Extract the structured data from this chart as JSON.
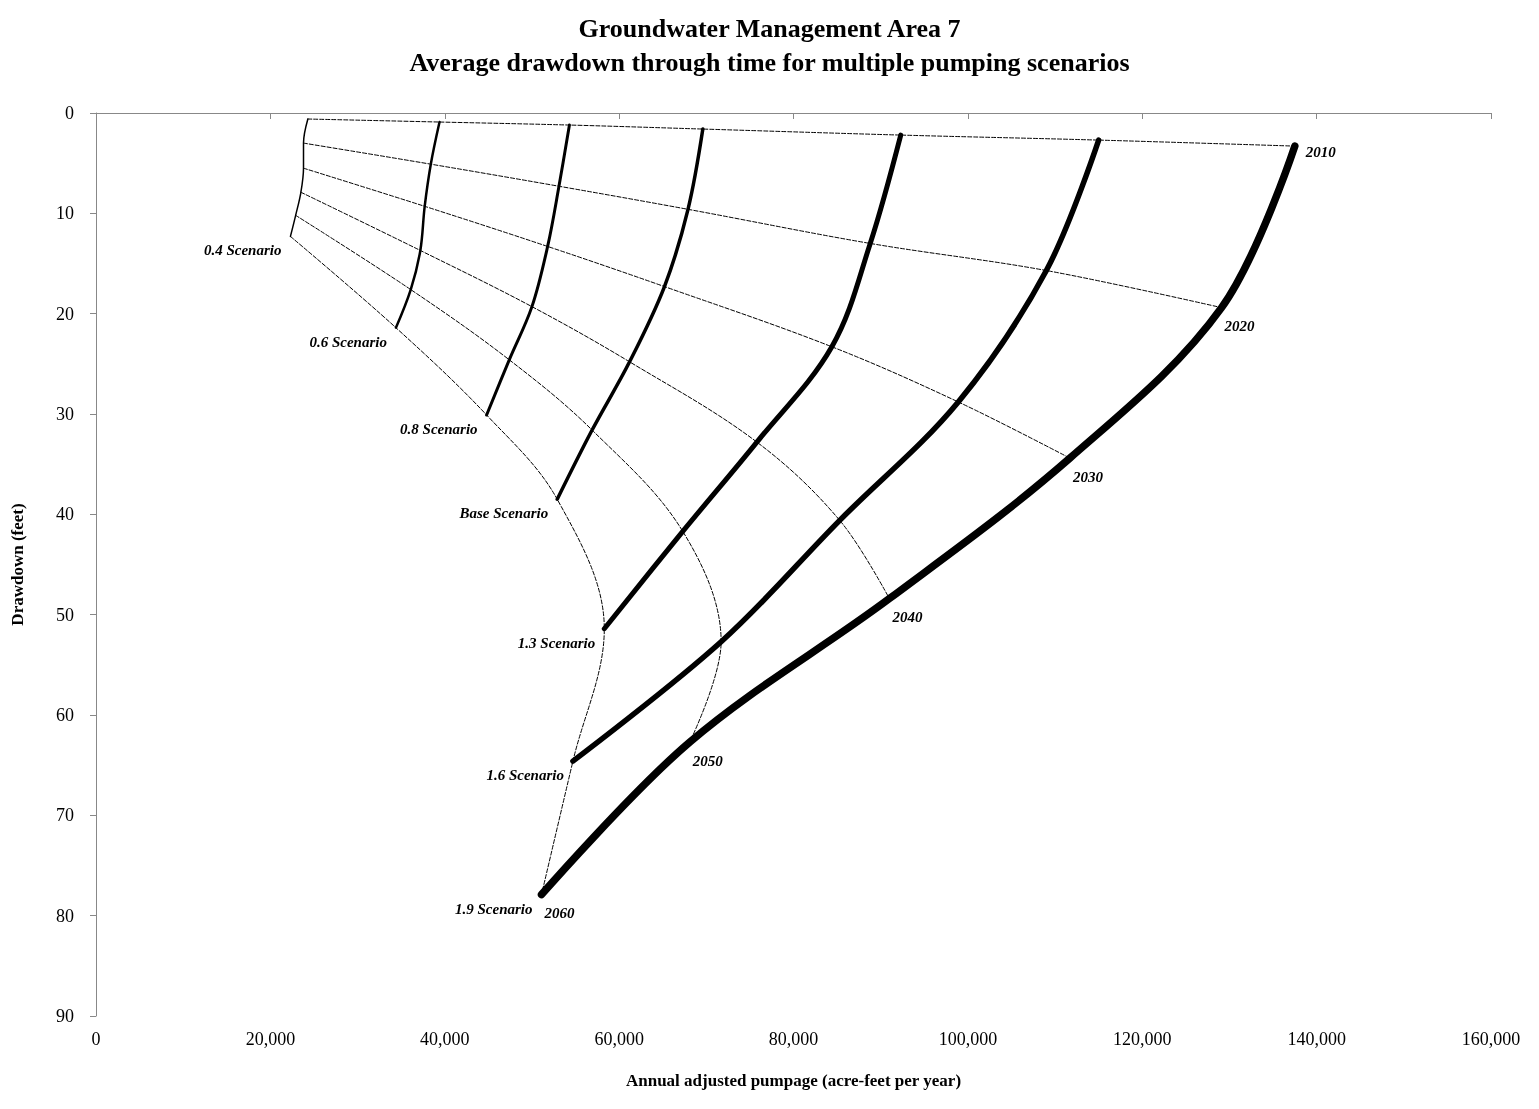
{
  "chart_data": {
    "type": "line",
    "title": "Groundwater Management Area 7",
    "subtitle": "Average drawdown through time for multiple pumping scenarios",
    "xlabel": "Annual adjusted pumpage (acre-feet per year)",
    "ylabel": "Drawdown (feet)",
    "xlim": [
      0,
      160000
    ],
    "xticks": [
      {
        "value": 0,
        "label": "0"
      },
      {
        "value": 20000,
        "label": "20,000"
      },
      {
        "value": 40000,
        "label": "40,000"
      },
      {
        "value": 60000,
        "label": "60,000"
      },
      {
        "value": 80000,
        "label": "80,000"
      },
      {
        "value": 100000,
        "label": "100,000"
      },
      {
        "value": 120000,
        "label": "120,000"
      },
      {
        "value": 140000,
        "label": "140,000"
      },
      {
        "value": 160000,
        "label": "160,000"
      }
    ],
    "ylim": [
      90,
      0
    ],
    "yticks": [
      0,
      10,
      20,
      30,
      40,
      50,
      60,
      70,
      80,
      90
    ],
    "grid": false,
    "legend": false,
    "marker": "none",
    "series": [
      {
        "name": "0.4 Scenario",
        "color": "#000000",
        "line_style": "solid",
        "x": [
          24300,
          23800,
          23800,
          23500,
          22900,
          22300
        ],
        "values": [
          0.6,
          3.0,
          5.5,
          7.9,
          10.2,
          12.3
        ]
      },
      {
        "name": "0.6 Scenario",
        "color": "#000000",
        "line_style": "solid",
        "x": [
          39400,
          38400,
          37700,
          37200,
          36100,
          34400
        ],
        "values": [
          0.9,
          5.1,
          9.3,
          13.7,
          17.6,
          21.4
        ]
      },
      {
        "name": "0.8 Scenario",
        "color": "#000000",
        "line_style": "solid",
        "x": [
          54300,
          53100,
          51800,
          50000,
          47400,
          44800
        ],
        "values": [
          1.2,
          7.3,
          13.3,
          19.3,
          24.6,
          30.1
        ]
      },
      {
        "name": "Base Scenario",
        "color": "#000000",
        "line_style": "solid",
        "x": [
          69600,
          67900,
          65200,
          61200,
          56900,
          52900
        ],
        "values": [
          1.6,
          9.6,
          17.3,
          24.8,
          31.6,
          38.5
        ]
      },
      {
        "name": "1.3 Scenario",
        "color": "#000000",
        "line_style": "solid",
        "x": [
          92300,
          88800,
          84400,
          75800,
          67300,
          58300
        ],
        "values": [
          2.2,
          13.0,
          23.3,
          32.8,
          41.7,
          51.4
        ]
      },
      {
        "name": "1.6 Scenario",
        "color": "#000000",
        "line_style": "solid",
        "x": [
          115000,
          109000,
          98900,
          85300,
          71700,
          54700
        ],
        "values": [
          2.7,
          15.7,
          28.8,
          40.6,
          52.7,
          64.6
        ]
      },
      {
        "name": "1.9 Scenario",
        "color": "#000000",
        "line_style": "solid",
        "x": [
          137500,
          129100,
          111700,
          91000,
          68100,
          51100
        ],
        "values": [
          3.3,
          19.4,
          34.4,
          48.4,
          62.7,
          77.9
        ]
      },
      {
        "name": "2010",
        "color": "#000000",
        "line_style": "dashed",
        "x": [
          24300,
          39400,
          54300,
          69600,
          92300,
          115000,
          137500
        ],
        "values": [
          0.6,
          0.9,
          1.2,
          1.6,
          2.2,
          2.7,
          3.3
        ]
      },
      {
        "name": "2020",
        "color": "#000000",
        "line_style": "dashed",
        "x": [
          23800,
          38400,
          53100,
          67900,
          88800,
          109000,
          129100
        ],
        "values": [
          3.0,
          5.1,
          7.3,
          9.6,
          13.0,
          15.7,
          19.4
        ]
      },
      {
        "name": "2030",
        "color": "#000000",
        "line_style": "dashed",
        "x": [
          23800,
          37700,
          51800,
          65200,
          84400,
          98900,
          111700
        ],
        "values": [
          5.5,
          9.3,
          13.3,
          17.3,
          23.3,
          28.8,
          34.4
        ]
      },
      {
        "name": "2040",
        "color": "#000000",
        "line_style": "dashed",
        "x": [
          23500,
          37200,
          50000,
          61200,
          75800,
          85300,
          91000
        ],
        "values": [
          7.9,
          13.7,
          19.3,
          24.8,
          32.8,
          40.6,
          48.4
        ]
      },
      {
        "name": "2050",
        "color": "#000000",
        "line_style": "dashed",
        "x": [
          22900,
          36100,
          47400,
          56900,
          67300,
          71700,
          68100
        ],
        "values": [
          10.2,
          17.6,
          24.6,
          31.6,
          41.7,
          52.7,
          62.7
        ]
      },
      {
        "name": "2060",
        "color": "#000000",
        "line_style": "dashed",
        "x": [
          22300,
          34400,
          44800,
          52900,
          58300,
          54700,
          51100
        ],
        "values": [
          12.3,
          21.4,
          30.1,
          38.5,
          51.4,
          64.6,
          77.9
        ]
      }
    ]
  }
}
